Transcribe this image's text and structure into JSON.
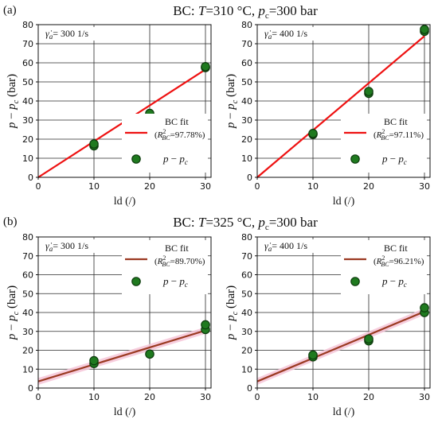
{
  "rows": [
    {
      "panel_label": "(a)",
      "title": "BC: T=310 °C, p_c=300 bar",
      "title_parts": {
        "prefix": "BC: ",
        "T": "T",
        "eq1": "=310 °C, ",
        "p": "p",
        "sub": "c",
        "eq2": "=300 bar"
      }
    },
    {
      "panel_label": "(b)",
      "title": "BC: T=325 °C, p_c=300 bar",
      "title_parts": {
        "prefix": "BC: ",
        "T": "T",
        "eq1": "=325 °C, ",
        "p": "p",
        "sub": "c",
        "eq2": "=300 bar"
      }
    }
  ],
  "common": {
    "ylabel": "p − p_c (bar)",
    "xlabel": "ld (/)",
    "fit_label": "BC fit",
    "scatter_label": "p − p_c"
  },
  "colors": {
    "marker_fill": "#1f7a1f",
    "marker_edge": "#0d3b0d",
    "fit_red": "#ee1111",
    "fit_brown": "#9b3a22",
    "band_pink": "#f6c6d8",
    "grid": "#2a2a2a"
  },
  "chart_data": [
    {
      "type": "scatter",
      "row": 0,
      "col": 0,
      "annotation": "γ̇a= 300 1/s",
      "annotation_parts": {
        "gamma": "γ̇",
        "sub": "a",
        "rest": "= 300 1/s"
      },
      "legend": {
        "fit": "BC fit",
        "r2": "(R²BC=97.78%)",
        "r2_value": "=97.78%)",
        "scatter": "p − p_c"
      },
      "x": [
        10,
        10,
        20,
        30,
        30
      ],
      "y": [
        16.5,
        17.5,
        33.5,
        57.5,
        58
      ],
      "fit": {
        "x": [
          0,
          30
        ],
        "y": [
          0,
          56.5
        ],
        "color": "red",
        "band": false
      },
      "xlim": [
        0,
        31
      ],
      "ylim": [
        0,
        80
      ],
      "xticks": [
        0,
        10,
        20,
        30
      ],
      "yticks": [
        0,
        10,
        20,
        30,
        40,
        50,
        60,
        70,
        80
      ],
      "xlabel": "ld (/)",
      "ylabel": "p − p_c (bar)",
      "grid": true,
      "legend_position": "lower-right"
    },
    {
      "type": "scatter",
      "row": 0,
      "col": 1,
      "annotation": "γ̇a= 400 1/s",
      "annotation_parts": {
        "gamma": "γ̇",
        "sub": "a",
        "rest": "= 400 1/s"
      },
      "legend": {
        "fit": "BC fit",
        "r2": "(R²BC=97.11%)",
        "r2_value": "=97.11%)",
        "scatter": "p − p_c"
      },
      "x": [
        10,
        10,
        20,
        20,
        30,
        30
      ],
      "y": [
        22.5,
        23,
        44,
        45,
        76.5,
        77.5
      ],
      "fit": {
        "x": [
          0,
          30
        ],
        "y": [
          0,
          74
        ],
        "color": "red",
        "band": false
      },
      "xlim": [
        0,
        31
      ],
      "ylim": [
        0,
        80
      ],
      "xticks": [
        0,
        10,
        20,
        30
      ],
      "yticks": [
        0,
        10,
        20,
        30,
        40,
        50,
        60,
        70,
        80
      ],
      "xlabel": "ld (/)",
      "ylabel": "p − p_c (bar)",
      "grid": true,
      "legend_position": "lower-right"
    },
    {
      "type": "scatter",
      "row": 1,
      "col": 0,
      "annotation": "γ̇a= 300 1/s",
      "annotation_parts": {
        "gamma": "γ̇",
        "sub": "a",
        "rest": "= 300 1/s"
      },
      "legend": {
        "fit": "BC fit",
        "r2": "(R²BC=89.70%)",
        "r2_value": "=89.70%)",
        "scatter": "p − p_c"
      },
      "x": [
        10,
        10,
        20,
        30,
        30
      ],
      "y": [
        13,
        14.5,
        18,
        31,
        33.5
      ],
      "fit": {
        "x": [
          0,
          30
        ],
        "y": [
          3.5,
          30.5
        ],
        "color": "brown",
        "band": true
      },
      "xlim": [
        0,
        31
      ],
      "ylim": [
        0,
        80
      ],
      "xticks": [
        0,
        10,
        20,
        30
      ],
      "yticks": [
        0,
        10,
        20,
        30,
        40,
        50,
        60,
        70,
        80
      ],
      "xlabel": "ld (/)",
      "ylabel": "p − p_c (bar)",
      "grid": true,
      "legend_position": "top-right"
    },
    {
      "type": "scatter",
      "row": 1,
      "col": 1,
      "annotation": "γ̇a= 400 1/s",
      "annotation_parts": {
        "gamma": "γ̇",
        "sub": "a",
        "rest": "= 400 1/s"
      },
      "legend": {
        "fit": "BC fit",
        "r2": "(R²BC=96.21%)",
        "r2_value": "=96.21%)",
        "scatter": "p − p_c"
      },
      "x": [
        10,
        10,
        20,
        20,
        30,
        30
      ],
      "y": [
        16.5,
        17.5,
        25,
        26,
        40,
        42.5
      ],
      "fit": {
        "x": [
          0,
          30
        ],
        "y": [
          3.5,
          40.5
        ],
        "color": "brown",
        "band": true
      },
      "xlim": [
        0,
        31
      ],
      "ylim": [
        0,
        80
      ],
      "xticks": [
        0,
        10,
        20,
        30
      ],
      "yticks": [
        0,
        10,
        20,
        30,
        40,
        50,
        60,
        70,
        80
      ],
      "xlabel": "ld (/)",
      "ylabel": "p − p_c (bar)",
      "grid": true,
      "legend_position": "top-right"
    }
  ]
}
